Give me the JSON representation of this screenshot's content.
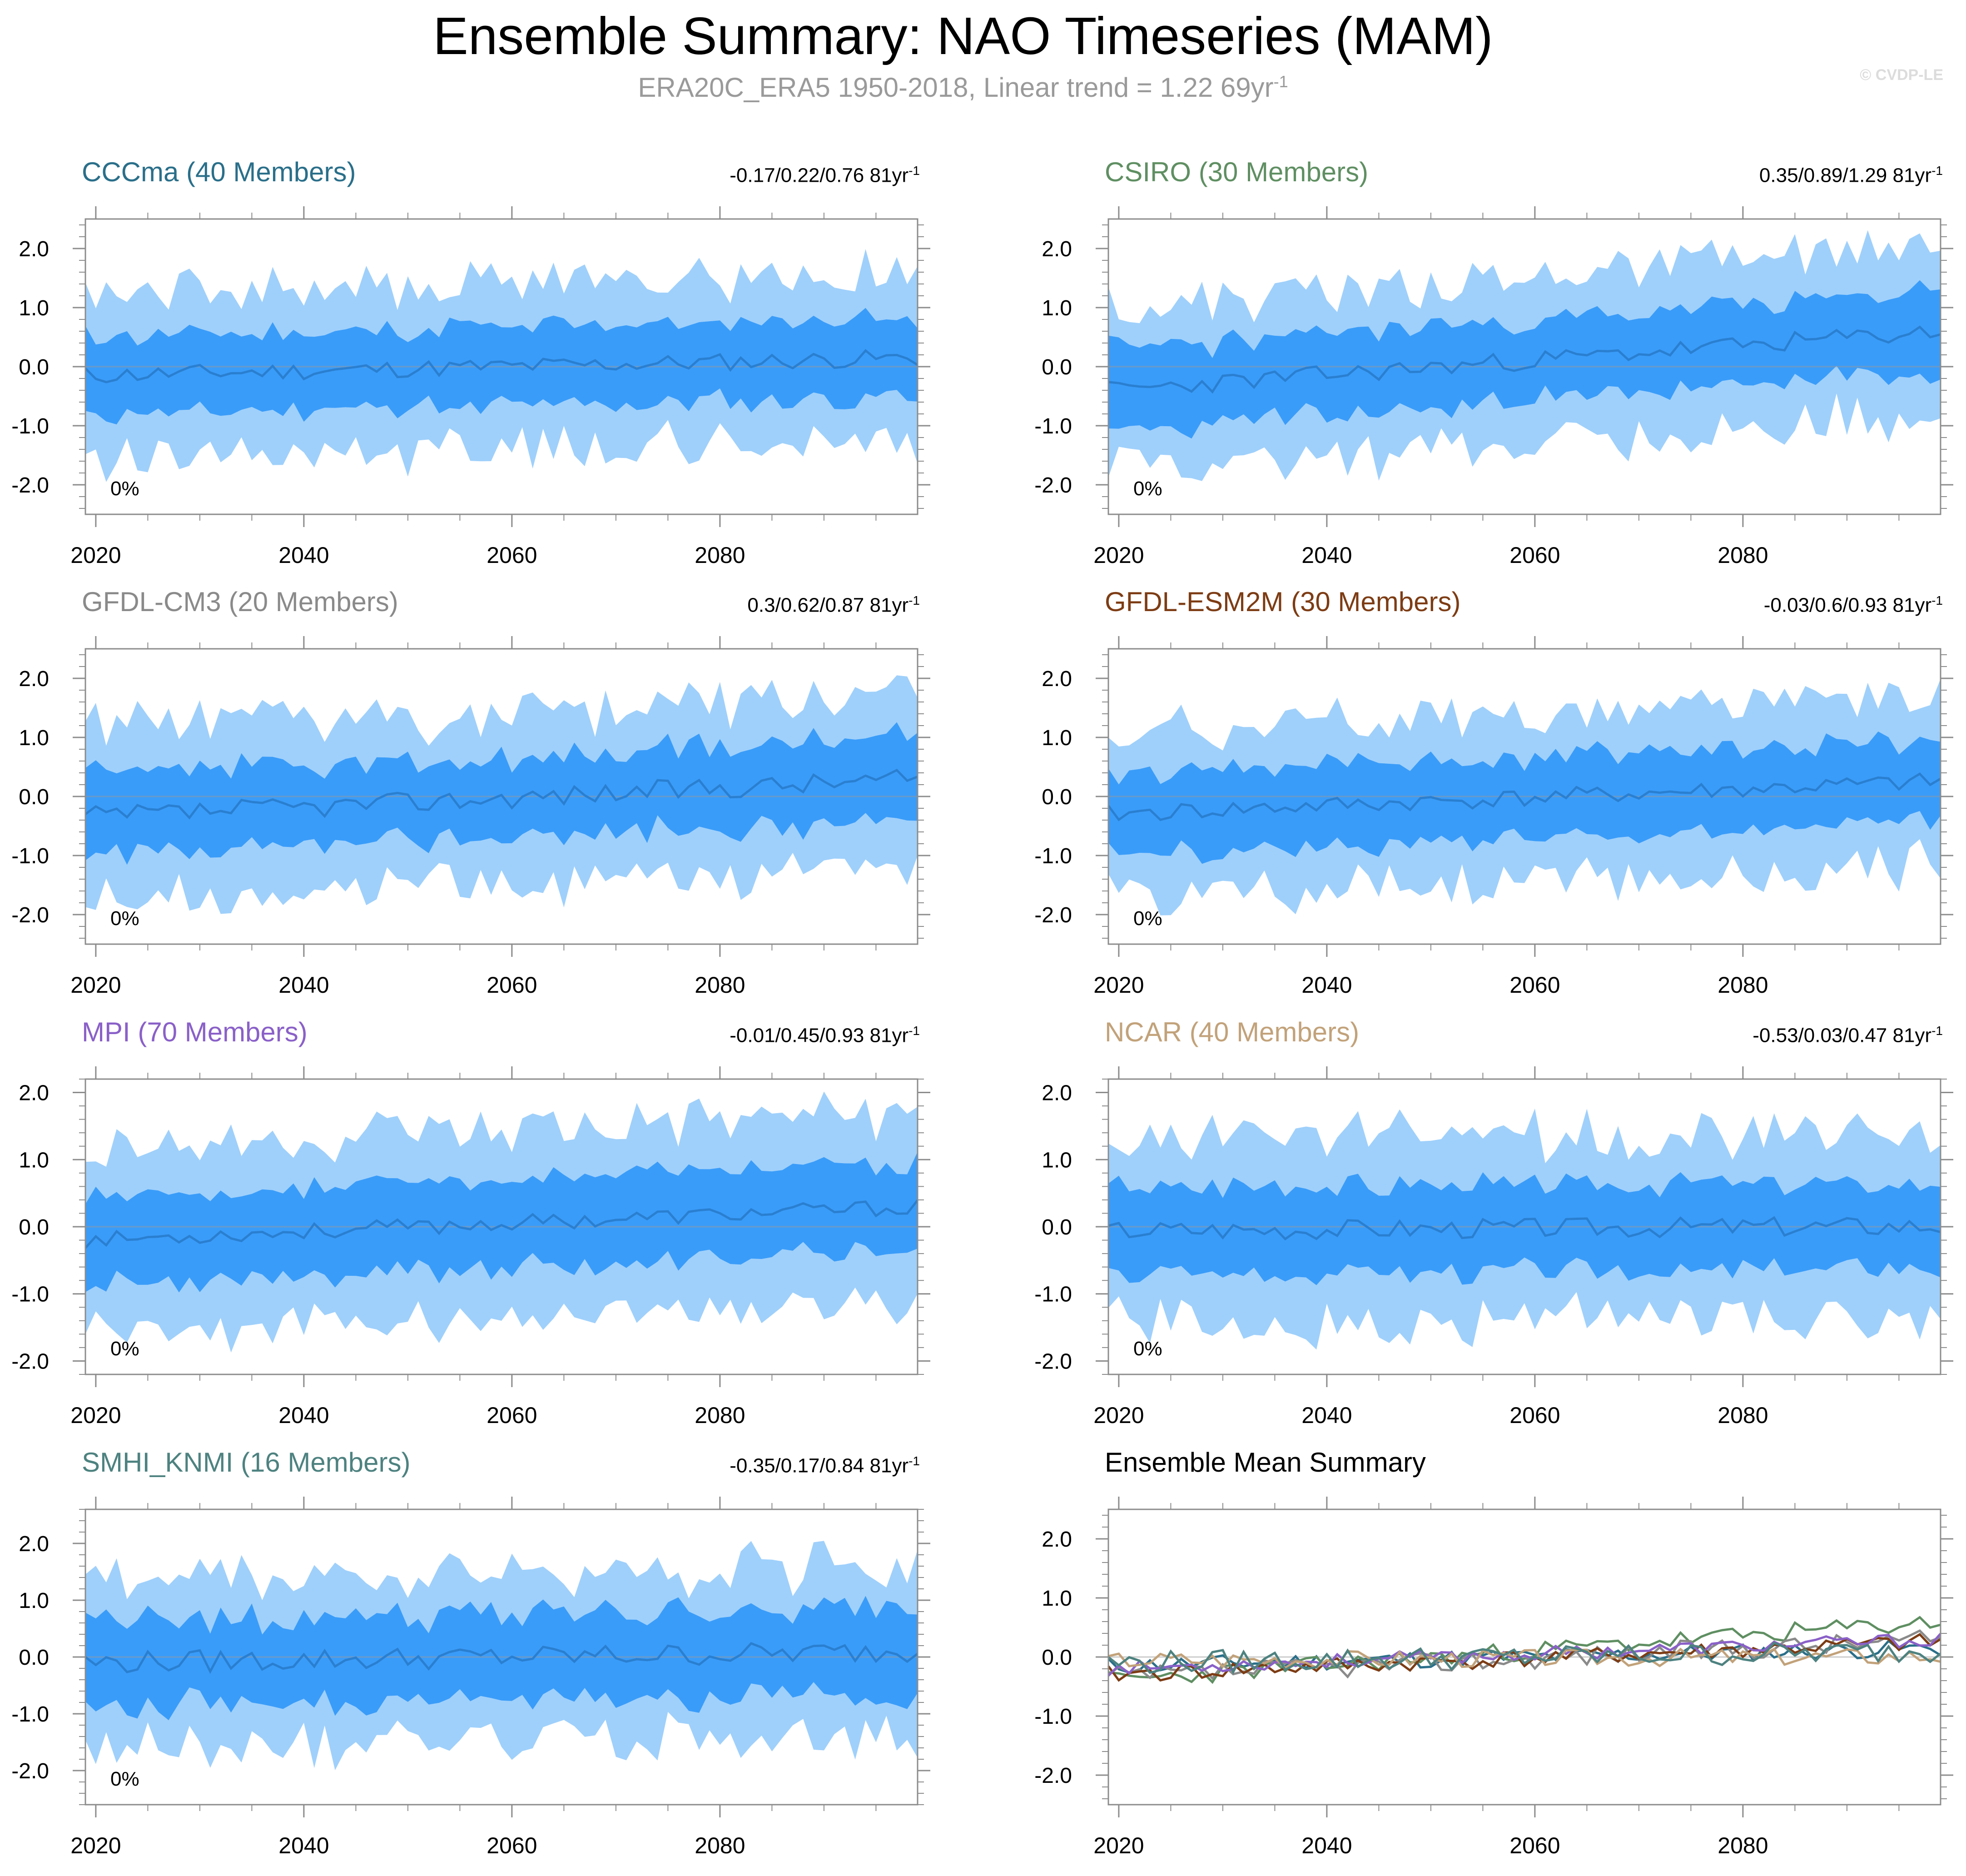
{
  "title": "Ensemble Summary: NAO Timeseries (MAM)",
  "subtitle": {
    "text": "ERA20C_ERA5 1950-2018, Linear trend = 1.22 69yr",
    "exponent": "-1"
  },
  "credit": "© CVDP-LE",
  "colors": {
    "outer_band": "#9fd0fb",
    "inner_band": "#3a9cf9",
    "mean_line": "#2a7fd0",
    "zero_line": "#9a9a9a",
    "axis": "#8c8c8c"
  },
  "chart_data": [
    {
      "type": "area",
      "title": "CCCma (40 Members)",
      "title_color": "#2a6f8a",
      "stat": "-0.17/0.22/0.76 81yr",
      "stat_exponent": "-1",
      "percent_label": "0%",
      "x_range": [
        2019,
        2099
      ],
      "y_range": [
        -2.5,
        2.5
      ],
      "y_ticks": [
        "2.0",
        "1.0",
        "0.0",
        "-1.0",
        "-2.0"
      ],
      "x_ticks": [
        "2020",
        "2040",
        "2060",
        "2080"
      ],
      "seed": 11,
      "trend": [
        -0.15,
        0.15
      ],
      "amp": 0.15,
      "spread": [
        0.62,
        1.18
      ]
    },
    {
      "type": "area",
      "title": "CSIRO (30 Members)",
      "title_color": "#5f8f62",
      "stat": "0.35/0.89/1.29 81yr",
      "stat_exponent": "-1",
      "percent_label": "0%",
      "x_range": [
        2019,
        2099
      ],
      "y_range": [
        -2.5,
        2.5
      ],
      "y_ticks": [
        "2.0",
        "1.0",
        "0.0",
        "-1.0",
        "-2.0"
      ],
      "x_ticks": [
        "2020",
        "2040",
        "2060",
        "2080"
      ],
      "seed": 23,
      "trend": [
        -0.4,
        0.6
      ],
      "amp": 0.16,
      "spread": [
        0.62,
        1.2
      ]
    },
    {
      "type": "area",
      "title": "GFDL-CM3 (20 Members)",
      "title_color": "#8a8a8a",
      "stat": "0.3/0.62/0.87 81yr",
      "stat_exponent": "-1",
      "percent_label": "0%",
      "x_range": [
        2019,
        2099
      ],
      "y_range": [
        -2.5,
        2.5
      ],
      "y_ticks": [
        "2.0",
        "1.0",
        "0.0",
        "-1.0",
        "-2.0"
      ],
      "x_ticks": [
        "2020",
        "2040",
        "2060",
        "2080"
      ],
      "seed": 37,
      "trend": [
        -0.35,
        0.3
      ],
      "amp": 0.18,
      "spread": [
        0.62,
        1.22
      ]
    },
    {
      "type": "area",
      "title": "GFDL-ESM2M (30 Members)",
      "title_color": "#7d3c14",
      "stat": "-0.03/0.6/0.93 81yr",
      "stat_exponent": "-1",
      "percent_label": "0%",
      "x_range": [
        2019,
        2099
      ],
      "y_range": [
        -2.5,
        2.5
      ],
      "y_ticks": [
        "2.0",
        "1.0",
        "0.0",
        "-1.0",
        "-2.0"
      ],
      "x_ticks": [
        "2020",
        "2040",
        "2060",
        "2080"
      ],
      "seed": 41,
      "trend": [
        -0.3,
        0.25
      ],
      "amp": 0.15,
      "spread": [
        0.62,
        1.2
      ]
    },
    {
      "type": "area",
      "title": "MPI (70 Members)",
      "title_color": "#8a60c8",
      "stat": "-0.01/0.45/0.93 81yr",
      "stat_exponent": "-1",
      "percent_label": "0%",
      "x_range": [
        2019,
        2099
      ],
      "y_range": [
        -2.2,
        2.2
      ],
      "y_ticks": [
        "2.0",
        "1.0",
        "0.0",
        "-1.0",
        "-2.0"
      ],
      "x_ticks": [
        "2020",
        "2040",
        "2060",
        "2080"
      ],
      "seed": 53,
      "trend": [
        -0.2,
        0.3
      ],
      "amp": 0.12,
      "spread": [
        0.62,
        1.15
      ]
    },
    {
      "type": "area",
      "title": "NCAR (40 Members)",
      "title_color": "#c2a27a",
      "stat": "-0.53/0.03/0.47 81yr",
      "stat_exponent": "-1",
      "percent_label": "0%",
      "x_range": [
        2019,
        2099
      ],
      "y_range": [
        -2.2,
        2.2
      ],
      "y_ticks": [
        "2.0",
        "1.0",
        "0.0",
        "-1.0",
        "-2.0"
      ],
      "x_ticks": [
        "2020",
        "2040",
        "2060",
        "2080"
      ],
      "seed": 67,
      "trend": [
        -0.05,
        0.02
      ],
      "amp": 0.15,
      "spread": [
        0.62,
        1.12
      ]
    },
    {
      "type": "area",
      "title": "SMHI_KNMI (16 Members)",
      "title_color": "#4d8280",
      "stat": "-0.35/0.17/0.84 81yr",
      "stat_exponent": "-1",
      "percent_label": "0%",
      "x_range": [
        2019,
        2099
      ],
      "y_range": [
        -2.6,
        2.6
      ],
      "y_ticks": [
        "2.0",
        "1.0",
        "0.0",
        "-1.0",
        "-2.0"
      ],
      "x_ticks": [
        "2020",
        "2040",
        "2060",
        "2080"
      ],
      "seed": 79,
      "trend": [
        -0.1,
        0.1
      ],
      "amp": 0.2,
      "spread": [
        0.65,
        1.3
      ]
    },
    {
      "type": "line",
      "title": "Ensemble Mean Summary",
      "title_color": "#000000",
      "x_range": [
        2019,
        2099
      ],
      "y_range": [
        -2.5,
        2.5
      ],
      "y_ticks": [
        "2.0",
        "1.0",
        "0.0",
        "-1.0",
        "-2.0"
      ],
      "x_ticks": [
        "2020",
        "2040",
        "2060",
        "2080"
      ],
      "series": [
        {
          "name": "CCCma",
          "color": "#2a6f8a",
          "seed": 11,
          "trend": [
            -0.15,
            0.15
          ],
          "amp": 0.15
        },
        {
          "name": "CSIRO",
          "color": "#5f8f62",
          "seed": 23,
          "trend": [
            -0.4,
            0.6
          ],
          "amp": 0.16
        },
        {
          "name": "GFDL-CM3",
          "color": "#8a8a8a",
          "seed": 37,
          "trend": [
            -0.35,
            0.3
          ],
          "amp": 0.18
        },
        {
          "name": "GFDL-ESM2M",
          "color": "#7d3c14",
          "seed": 41,
          "trend": [
            -0.3,
            0.25
          ],
          "amp": 0.15
        },
        {
          "name": "MPI",
          "color": "#8a60c8",
          "seed": 53,
          "trend": [
            -0.2,
            0.3
          ],
          "amp": 0.12
        },
        {
          "name": "NCAR",
          "color": "#c2a27a",
          "seed": 67,
          "trend": [
            -0.05,
            0.02
          ],
          "amp": 0.15
        },
        {
          "name": "SMHI_KNMI",
          "color": "#4d8280",
          "seed": 79,
          "trend": [
            -0.1,
            0.1
          ],
          "amp": 0.2
        }
      ]
    }
  ]
}
